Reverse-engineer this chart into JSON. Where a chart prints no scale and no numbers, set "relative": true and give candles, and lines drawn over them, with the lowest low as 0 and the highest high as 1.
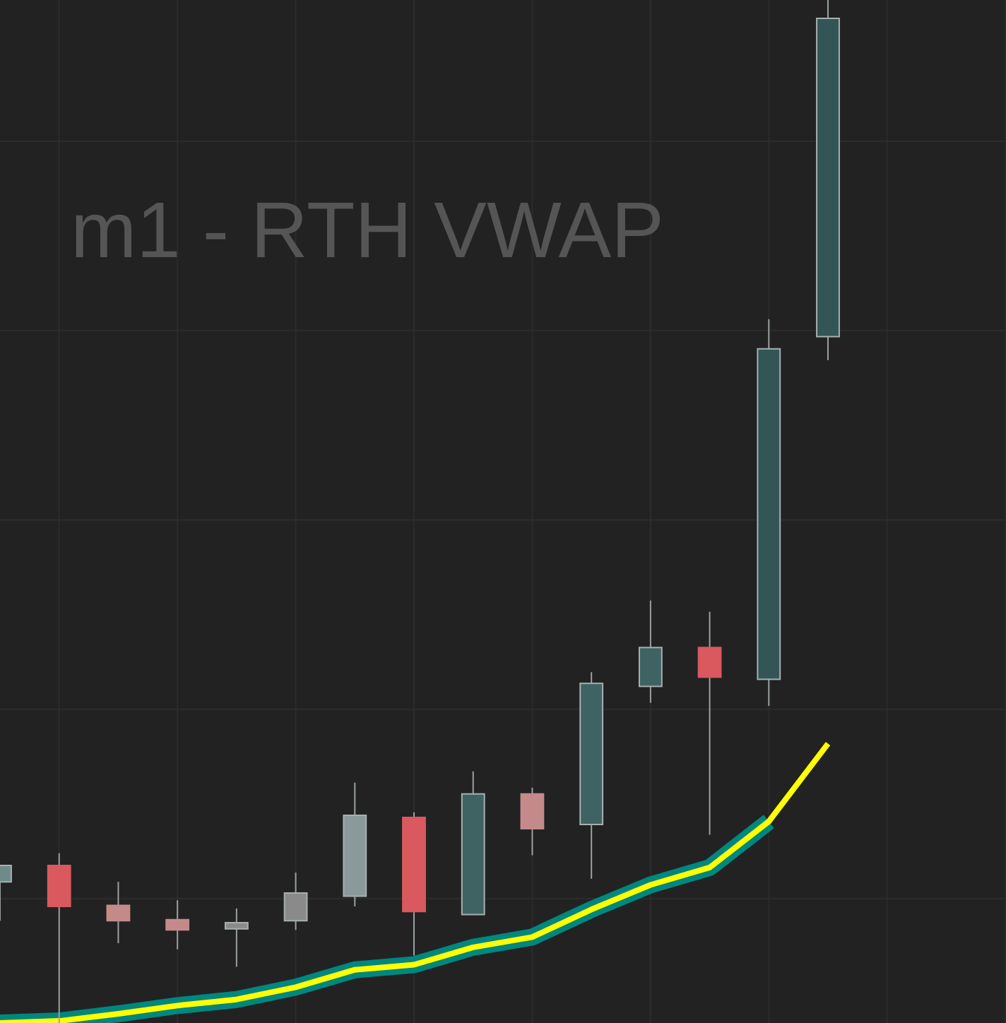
{
  "chart_data": {
    "type": "candlestick",
    "title": "m1 - RTH VWAP",
    "relative": true,
    "grid": true,
    "legend": false,
    "categories": [
      null,
      null,
      null,
      null,
      null,
      null,
      null,
      null,
      null,
      null,
      null,
      null,
      null,
      null,
      null
    ],
    "ohlc": [
      [
        0.138,
        0.154,
        0.1,
        0.154
      ],
      [
        0.154,
        0.166,
        0,
        0.114
      ],
      [
        0.115,
        0.138,
        0.078,
        0.1
      ],
      [
        0.101,
        0.12,
        0.072,
        0.091
      ],
      [
        0.092,
        0.112,
        0.055,
        0.098
      ],
      [
        0.1,
        0.147,
        0.091,
        0.127
      ],
      [
        0.124,
        0.235,
        0.114,
        0.203
      ],
      [
        0.201,
        0.206,
        0.066,
        0.109
      ],
      [
        0.106,
        0.246,
        0.106,
        0.224
      ],
      [
        0.224,
        0.23,
        0.164,
        0.19
      ],
      [
        0.194,
        0.343,
        0.141,
        0.332
      ],
      [
        0.329,
        0.413,
        0.313,
        0.367
      ],
      [
        0.367,
        0.402,
        0.184,
        0.338
      ],
      [
        0.336,
        0.688,
        0.31,
        0.659
      ],
      [
        0.671,
        1,
        0.648,
        0.982
      ]
    ],
    "colors": [
      "#6f8a8a",
      "#d9595f",
      "#c48a8a",
      "#c48a8a",
      "#8a8a8a",
      "#8a8a8a",
      "#8a9a9a",
      "#d9595f",
      "#3f6363",
      "#c48a8a",
      "#3f6363",
      "#3f6363",
      "#d9595f",
      "#335555",
      "#335555"
    ],
    "series": [
      {
        "type": "line",
        "color": "#00877f",
        "values": [
          0,
          0.002,
          0.009,
          0.017,
          0.023,
          0.035,
          0.052,
          0.057,
          0.074,
          0.084,
          0.111,
          0.135,
          0.152,
          0.197,
          null
        ]
      },
      {
        "type": "line",
        "color": "#ffff00",
        "values": [
          0,
          0.002,
          0.009,
          0.017,
          0.023,
          0.035,
          0.052,
          0.057,
          0.074,
          0.084,
          0.111,
          0.135,
          0.152,
          0.197,
          0.273
        ]
      }
    ]
  }
}
